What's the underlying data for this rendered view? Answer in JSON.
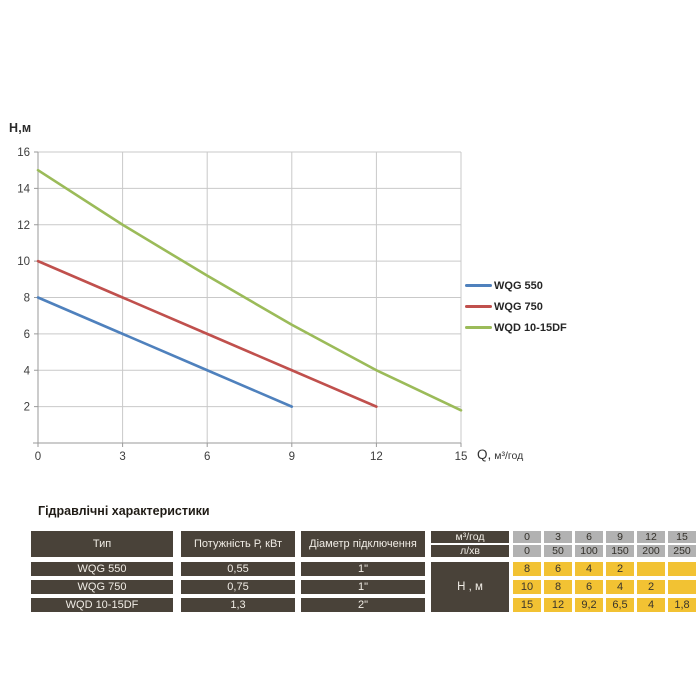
{
  "chart": {
    "y_axis_title": "Н,м",
    "x_axis_title_q": "Q,",
    "x_axis_title_units": "м³/год"
  },
  "chart_data": {
    "type": "line",
    "title": "",
    "xlabel": "Q, м³/год",
    "ylabel": "Н,м",
    "xlim": [
      0,
      15
    ],
    "ylim": [
      0,
      16
    ],
    "x_ticks": [
      0,
      3,
      6,
      9,
      12,
      15
    ],
    "y_ticks": [
      2,
      4,
      6,
      8,
      10,
      12,
      14,
      16
    ],
    "grid": true,
    "legend_position": "right-middle",
    "series": [
      {
        "name": "WQG 550",
        "color": "#4F81BD",
        "x": [
          0,
          3,
          6,
          9
        ],
        "y": [
          8,
          6,
          4,
          2
        ]
      },
      {
        "name": "WQG 750",
        "color": "#C0504D",
        "x": [
          0,
          3,
          6,
          9,
          12
        ],
        "y": [
          10,
          8,
          6,
          4,
          2
        ]
      },
      {
        "name": "WQD 10-15DF",
        "color": "#9BBB59",
        "x": [
          0,
          3,
          6,
          9,
          12,
          15
        ],
        "y": [
          15,
          12,
          9.2,
          6.5,
          4,
          1.8
        ]
      }
    ],
    "colors": {
      "grid": "#c9c9c9",
      "axis": "#9a9a9a",
      "tick_text": "#3d3d3d"
    }
  },
  "table": {
    "title": "Гідравлічні характеристики",
    "col_type": "Тип",
    "col_power": "Потужність Р, кВт",
    "col_diameter": "Діаметр підключення",
    "unit_flow_m3": "м³/год",
    "unit_flow_l": "л/хв",
    "unit_head": "Н , м",
    "flow_m3": [
      "0",
      "3",
      "6",
      "9",
      "12",
      "15"
    ],
    "flow_l": [
      "0",
      "50",
      "100",
      "150",
      "200",
      "250"
    ],
    "rows": [
      {
        "type": "WQG 550",
        "power": "0,55",
        "diameter": "1\"",
        "heads": [
          "8",
          "6",
          "4",
          "2",
          "",
          ""
        ]
      },
      {
        "type": "WQG 750",
        "power": "0,75",
        "diameter": "1\"",
        "heads": [
          "10",
          "8",
          "6",
          "4",
          "2",
          ""
        ]
      },
      {
        "type": "WQD 10-15DF",
        "power": "1,3",
        "diameter": "2\"",
        "heads": [
          "15",
          "12",
          "9,2",
          "6,5",
          "4",
          "1,8"
        ]
      }
    ],
    "colors": {
      "header_bg": "#494239",
      "gray_bg": "#b2b2b2",
      "yellow_bg": "#f2c233",
      "header_text": "#f1ede6",
      "cell_text": "#33302a"
    }
  }
}
